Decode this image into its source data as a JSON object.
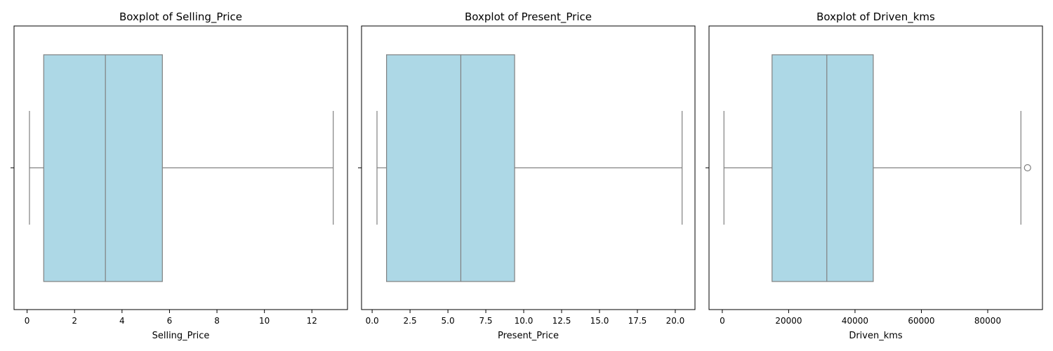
{
  "chart_data": [
    {
      "type": "boxplot",
      "title": "Boxplot of Selling_Price",
      "xlabel": "Selling_Price",
      "ylabel": "",
      "orientation": "horizontal",
      "xlim": [
        -0.55,
        13.5
      ],
      "xticks": [
        0,
        2,
        4,
        6,
        8,
        10,
        12
      ],
      "xtick_labels": [
        "0",
        "2",
        "4",
        "6",
        "8",
        "10",
        "12"
      ],
      "stats": {
        "whisker_low": 0.1,
        "q1": 0.7,
        "median": 3.3,
        "q3": 5.7,
        "whisker_high": 12.9
      },
      "outliers": [],
      "box_color": "#add8e6",
      "line_color": "#808080"
    },
    {
      "type": "boxplot",
      "title": "Boxplot of Present_Price",
      "xlabel": "Present_Price",
      "ylabel": "",
      "orientation": "horizontal",
      "xlim": [
        -0.7,
        21.3
      ],
      "xticks": [
        0,
        2.5,
        5,
        7.5,
        10,
        12.5,
        15,
        17.5,
        20
      ],
      "xtick_labels": [
        "0.0",
        "2.5",
        "5.0",
        "7.5",
        "10.0",
        "12.5",
        "15.0",
        "17.5",
        "20.0"
      ],
      "stats": {
        "whisker_low": 0.32,
        "q1": 0.95,
        "median": 5.85,
        "q3": 9.4,
        "whisker_high": 20.45
      },
      "outliers": [],
      "box_color": "#add8e6",
      "line_color": "#808080"
    },
    {
      "type": "boxplot",
      "title": "Boxplot of Driven_kms",
      "xlabel": "Driven_kms",
      "ylabel": "",
      "orientation": "horizontal",
      "xlim": [
        -4000,
        96500
      ],
      "xticks": [
        0,
        20000,
        40000,
        60000,
        80000
      ],
      "xtick_labels": [
        "0",
        "20000",
        "40000",
        "60000",
        "80000"
      ],
      "stats": {
        "whisker_low": 500,
        "q1": 15000,
        "median": 31500,
        "q3": 45500,
        "whisker_high": 90000
      },
      "outliers": [
        92000
      ],
      "box_color": "#add8e6",
      "line_color": "#808080"
    }
  ]
}
